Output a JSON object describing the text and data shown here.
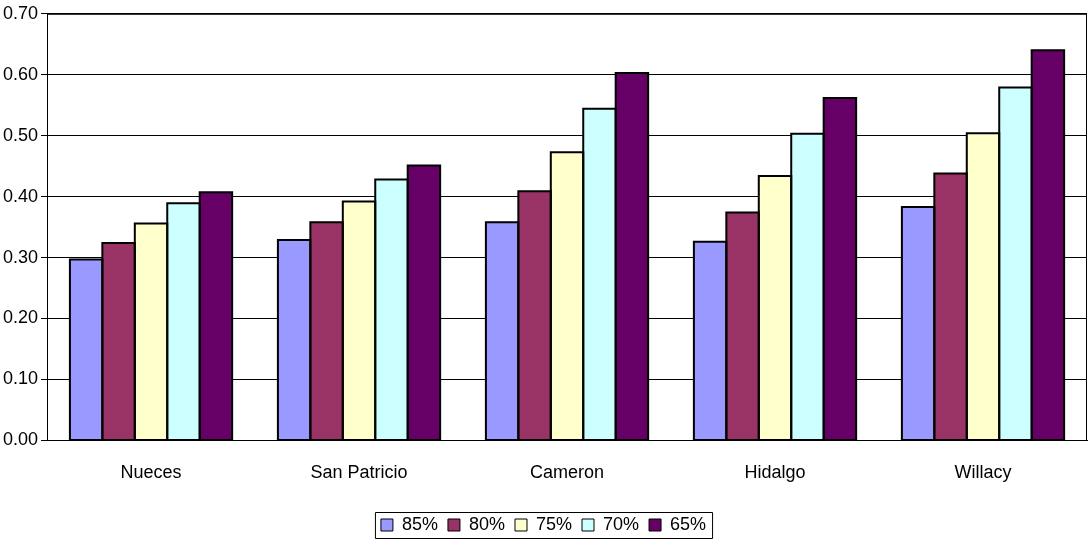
{
  "chart_data": {
    "type": "bar",
    "categories": [
      "Nueces",
      "San Patricio",
      "Cameron",
      "Hidalgo",
      "Willacy"
    ],
    "series": [
      {
        "name": "85%",
        "color": "#9999ff",
        "values": [
          0.297,
          0.329,
          0.358,
          0.326,
          0.383
        ]
      },
      {
        "name": "80%",
        "color": "#993366",
        "values": [
          0.324,
          0.358,
          0.409,
          0.374,
          0.438
        ]
      },
      {
        "name": "75%",
        "color": "#ffffcc",
        "values": [
          0.356,
          0.392,
          0.473,
          0.434,
          0.504
        ]
      },
      {
        "name": "70%",
        "color": "#ccffff",
        "values": [
          0.389,
          0.428,
          0.544,
          0.503,
          0.579
        ]
      },
      {
        "name": "65%",
        "color": "#660066",
        "values": [
          0.407,
          0.451,
          0.603,
          0.562,
          0.64
        ]
      }
    ],
    "ylim": [
      0,
      0.7
    ],
    "yticks": [
      {
        "value": 0,
        "label": "0.00"
      },
      {
        "value": 0.1,
        "label": "0.10"
      },
      {
        "value": 0.2,
        "label": "0.20"
      },
      {
        "value": 0.3,
        "label": "0.30"
      },
      {
        "value": 0.4,
        "label": "0.40"
      },
      {
        "value": 0.5,
        "label": "0.50"
      },
      {
        "value": 0.6,
        "label": "0.60"
      },
      {
        "value": 0.7,
        "label": "0.70"
      }
    ],
    "grid": "y",
    "legend": "bottom"
  }
}
